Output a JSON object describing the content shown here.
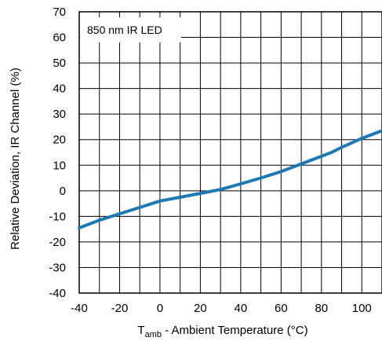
{
  "chart_data": {
    "type": "line",
    "xlabel_main": "T",
    "xlabel_sub": "amb",
    "xlabel_rest": " - Ambient Temperature (°C)",
    "ylabel": "Relative Deviation, IR Channel (%)",
    "annotation": "850 nm IR LED",
    "xlim": [
      -40,
      110
    ],
    "ylim": [
      -40,
      70
    ],
    "x_grid_step": 10,
    "y_grid_step": 10,
    "x_tick_labels": [
      "-40",
      "-20",
      "0",
      "20",
      "40",
      "60",
      "80",
      "100"
    ],
    "x_tick_values": [
      -40,
      -20,
      0,
      20,
      40,
      60,
      80,
      100
    ],
    "y_tick_labels": [
      "70",
      "60",
      "50",
      "40",
      "30",
      "20",
      "10",
      "0",
      "-10",
      "-20",
      "-30",
      "-40"
    ],
    "y_tick_values": [
      70,
      60,
      50,
      40,
      30,
      20,
      10,
      0,
      -10,
      -20,
      -30,
      -40
    ],
    "grid": true,
    "line_color": "#1f77b4",
    "series": [
      {
        "x": [
          -40,
          -30,
          -20,
          -10,
          0,
          10,
          20,
          30,
          40,
          50,
          60,
          70,
          80,
          85,
          90,
          100,
          110
        ],
        "y": [
          -14.5,
          -11.5,
          -9,
          -6.5,
          -4,
          -2.5,
          -1,
          0.5,
          2.7,
          5,
          7.5,
          10.5,
          13.5,
          15,
          17,
          20.5,
          23.5
        ]
      }
    ]
  }
}
